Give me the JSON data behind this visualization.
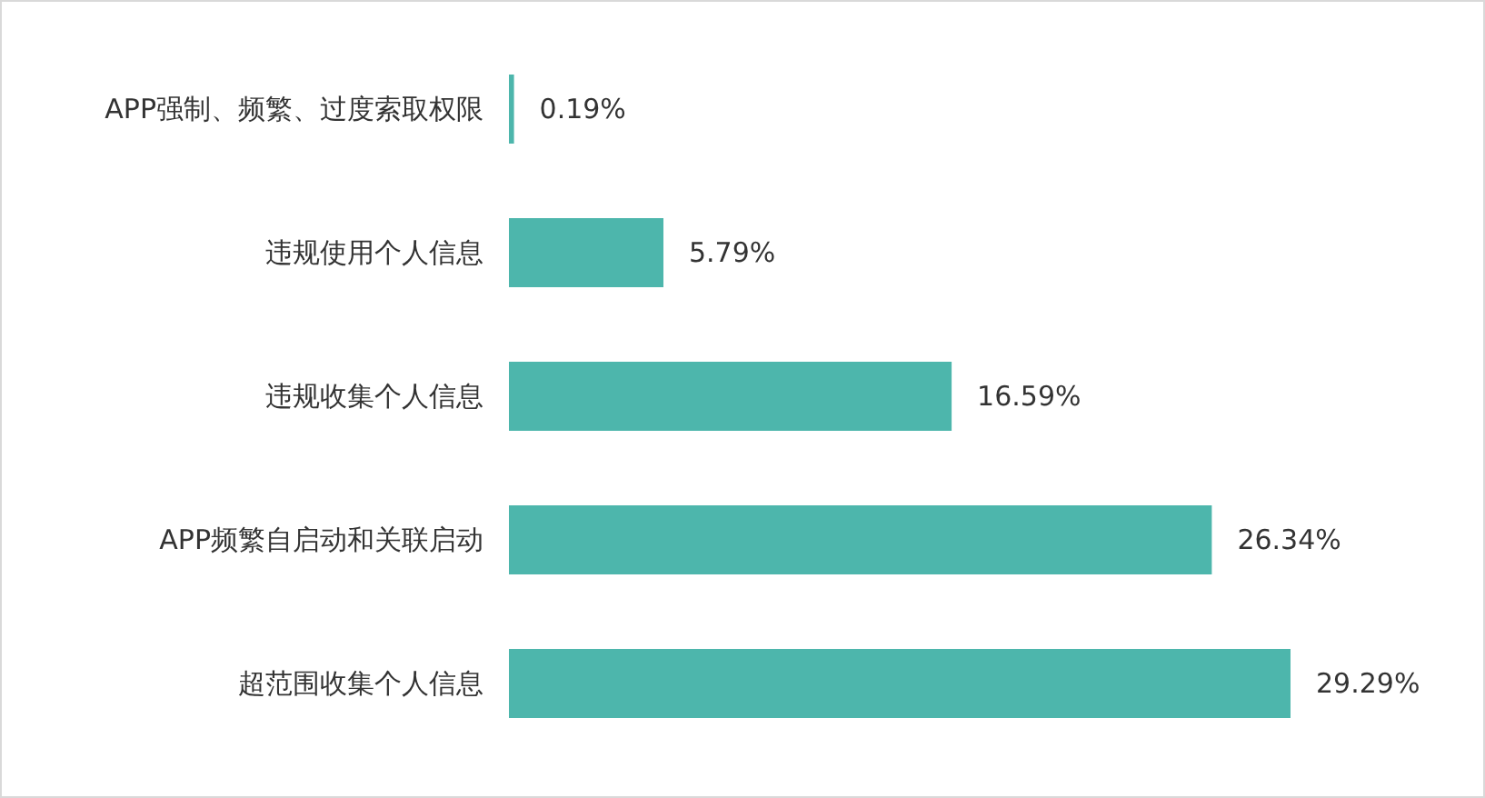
{
  "chart_data": {
    "type": "bar",
    "orientation": "horizontal",
    "categories": [
      "APP强制、频繁、过度索取权限",
      "违规使用个人信息",
      "违规收集个人信息",
      "APP频繁自启动和关联启动",
      "超范围收集个人信息"
    ],
    "values": [
      0.19,
      5.79,
      16.59,
      26.34,
      29.29
    ],
    "value_labels": [
      "0.19%",
      "5.79%",
      "16.59%",
      "26.34%",
      "29.29%"
    ],
    "color": "#4db6ac"
  }
}
